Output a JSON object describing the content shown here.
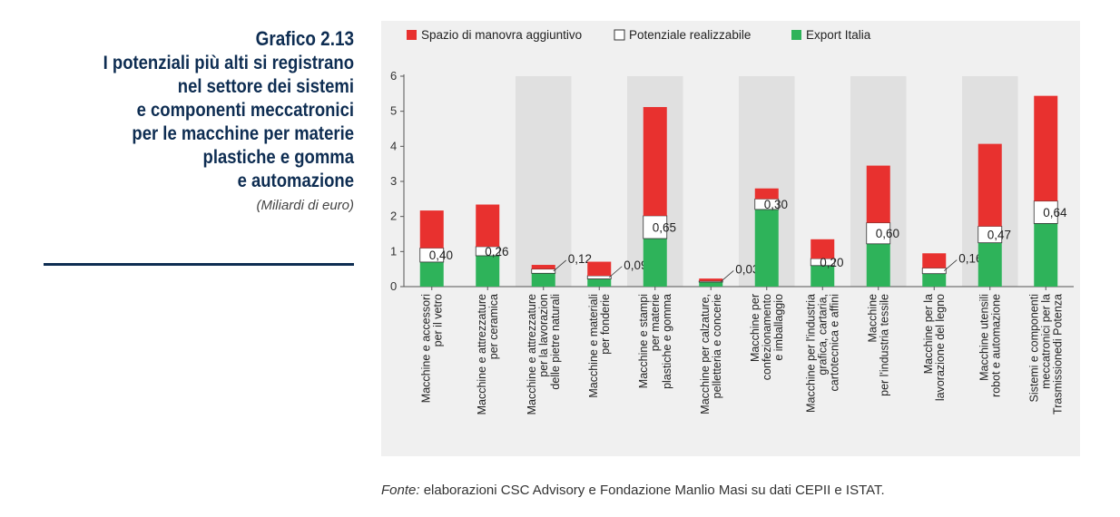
{
  "header": {
    "figure_number": "Grafico 2.13",
    "title": "I potenziali più alti si registrano\nnel settore dei sistemi\ne componenti meccatronici\nper le macchine per materie\nplastiche e gomma\ne automazione",
    "subtitle": "(Miliardi di euro)"
  },
  "source": {
    "prefix": "Fonte:",
    "text": " elaborazioni CSC Advisory e Fondazione Manlio Masi su dati CEPII e ISTAT."
  },
  "colors": {
    "red": "#e8312f",
    "white": "#ffffff",
    "green": "#2eb35a",
    "panel": "#f0f0f0",
    "band": "#e0e0e0"
  },
  "chart_data": {
    "type": "bar",
    "stacked": true,
    "title": "",
    "xlabel": "",
    "ylabel": "",
    "ylim": [
      0,
      6
    ],
    "yticks": [
      "0",
      "1",
      "2",
      "3",
      "4",
      "5",
      "6"
    ],
    "legend": {
      "placement": "top",
      "entries": [
        "Spazio di manovra aggiuntivo",
        "Potenziale realizzabile",
        "Export Italia"
      ]
    },
    "categories": [
      "Macchine e accessori\nper il vetro",
      "Macchine e attrezzature\nper ceramica",
      "Macchine e attrezzature\nper la lavorazion\ndelle pietre naturali",
      "Macchine e materiali\nper fonderie",
      "Macchine e stampi\nper materie\nplastiche e gomma",
      "Macchine per calzature,\npelletteria e concerie",
      "Macchine per\nconfezionamento\ne imballaggio",
      "Macchine per l'industria\ngrafica, cartaria,\ncartotecnica e affini",
      "Macchine\nper l'industria tessile",
      "Macchine per la\nlavorazione del legno",
      "Macchine utensili\nrobot e automazione",
      "Sistemi e componenti\nmeccatronici per la\nTrasmissionedi Potenza"
    ],
    "series": [
      {
        "name": "Export Italia",
        "color": "#2eb35a",
        "values": [
          0.7,
          0.88,
          0.38,
          0.22,
          1.37,
          0.13,
          2.2,
          0.6,
          1.22,
          0.37,
          1.25,
          1.8
        ]
      },
      {
        "name": "Potenziale realizzabile",
        "color": "#ffffff",
        "values": [
          0.4,
          0.26,
          0.12,
          0.09,
          0.65,
          0.03,
          0.3,
          0.2,
          0.6,
          0.16,
          0.47,
          0.64
        ]
      },
      {
        "name": "Spazio di manovra aggiuntivo",
        "color": "#e8312f",
        "values": [
          1.07,
          1.2,
          0.12,
          0.4,
          3.1,
          0.07,
          0.3,
          0.55,
          1.63,
          0.42,
          2.35,
          3.0
        ]
      }
    ],
    "value_labels": [
      "0,40",
      "0,26",
      "0,12",
      "0,09",
      "0,65",
      "0,03",
      "0,30",
      "0,20",
      "0,60",
      "0,16",
      "0,47",
      "0,64"
    ],
    "shaded_bands": [
      2,
      4,
      6,
      8,
      10
    ]
  }
}
